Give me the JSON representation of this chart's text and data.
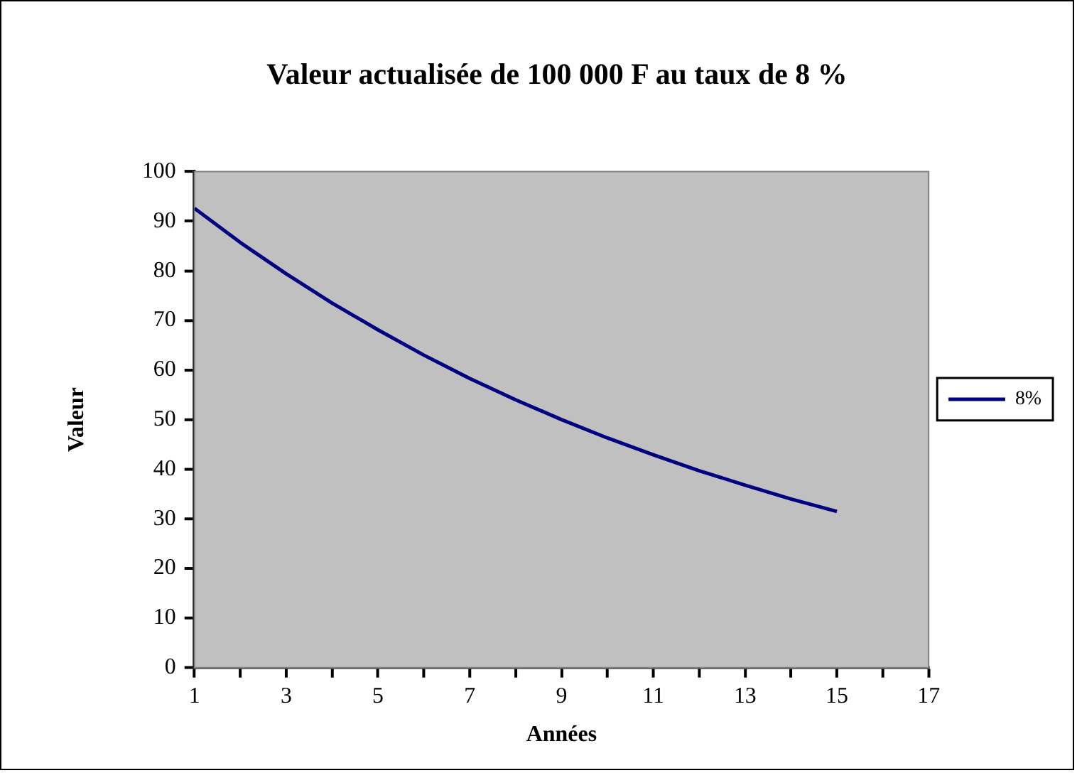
{
  "chart_data": {
    "type": "line",
    "title": "Valeur actualisée de 100 000 F au taux de 8 %",
    "xlabel": "Années",
    "ylabel": "Valeur",
    "x": [
      1,
      2,
      3,
      4,
      5,
      6,
      7,
      8,
      9,
      10,
      11,
      12,
      13,
      14,
      15
    ],
    "series": [
      {
        "name": "8%",
        "color": "#000080",
        "values": [
          92.6,
          85.7,
          79.4,
          73.5,
          68.1,
          63.0,
          58.3,
          54.0,
          50.0,
          46.3,
          42.9,
          39.7,
          36.8,
          34.0,
          31.5
        ]
      }
    ],
    "xlim": [
      1,
      17
    ],
    "xticks": [
      1,
      {
        "value": 2,
        "label": null
      },
      3,
      {
        "value": 4,
        "label": null
      },
      5,
      {
        "value": 6,
        "label": null
      },
      7,
      {
        "value": 8,
        "label": null
      },
      9,
      {
        "value": 10,
        "label": null
      },
      11,
      {
        "value": 12,
        "label": null
      },
      13,
      {
        "value": 14,
        "label": null
      },
      15,
      {
        "value": 16,
        "label": null
      },
      17
    ],
    "ylim": [
      0,
      100
    ],
    "yticks": [
      0,
      10,
      20,
      30,
      40,
      50,
      60,
      70,
      80,
      90,
      100
    ],
    "grid": false,
    "legend": "right",
    "marker": "none",
    "line_style": "solid"
  }
}
